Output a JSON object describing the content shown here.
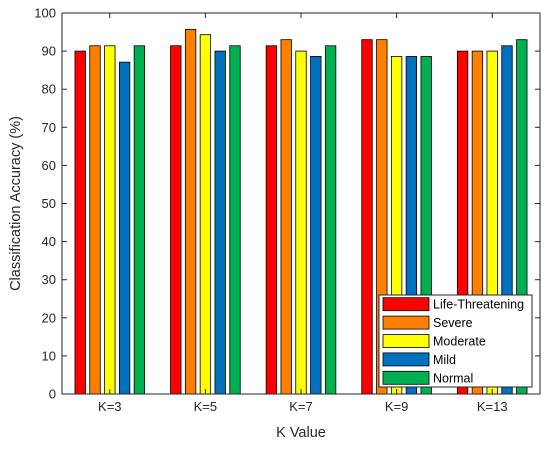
{
  "chart_data": {
    "type": "bar",
    "title": "",
    "xlabel": "K Value",
    "ylabel": "Classification Accuracy (%)",
    "ylim": [
      0,
      100
    ],
    "yticks": [
      0,
      10,
      20,
      30,
      40,
      50,
      60,
      70,
      80,
      90,
      100
    ],
    "grid": false,
    "legend_position": "bottom-right",
    "categories": [
      "K=3",
      "K=5",
      "K=7",
      "K=9",
      "K=13"
    ],
    "series": [
      {
        "name": "Life-Threatening",
        "color": "#ff0000",
        "values": [
          90.0,
          91.4,
          91.4,
          93.0,
          90.0
        ]
      },
      {
        "name": "Severe",
        "color": "#ff8000",
        "values": [
          91.4,
          95.7,
          93.0,
          93.0,
          90.0
        ]
      },
      {
        "name": "Moderate",
        "color": "#ffff00",
        "values": [
          91.4,
          94.3,
          90.0,
          88.6,
          90.0
        ]
      },
      {
        "name": "Mild",
        "color": "#0072bd",
        "values": [
          87.1,
          90.0,
          88.6,
          88.6,
          91.4
        ]
      },
      {
        "name": "Normal",
        "color": "#00b050",
        "values": [
          91.4,
          91.4,
          91.4,
          88.6,
          93.0
        ]
      }
    ]
  }
}
